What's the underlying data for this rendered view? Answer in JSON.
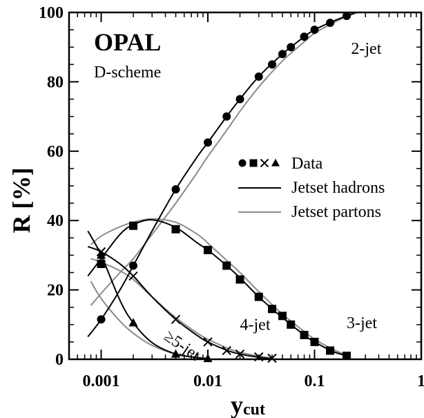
{
  "chart_data": {
    "type": "line",
    "title": "OPAL",
    "subtitle": "D-scheme",
    "xlabel": "y",
    "xlabel_sub": "cut",
    "ylabel": "R [%]",
    "x_scale": "log",
    "xlim": [
      0.0005,
      1
    ],
    "ylim": [
      0,
      100
    ],
    "x_ticks": [
      {
        "value": 0.001,
        "label": "0.001"
      },
      {
        "value": 0.01,
        "label": "0.01"
      },
      {
        "value": 0.1,
        "label": "0.1"
      },
      {
        "value": 1,
        "label": "1"
      }
    ],
    "y_ticks": [
      {
        "value": 0,
        "label": "0"
      },
      {
        "value": 20,
        "label": "20"
      },
      {
        "value": 40,
        "label": "40"
      },
      {
        "value": 60,
        "label": "60"
      },
      {
        "value": 80,
        "label": "80"
      },
      {
        "value": 100,
        "label": "100"
      }
    ],
    "grid": false,
    "legend_position": "right-middle",
    "legend": {
      "data_label": "Data",
      "hadrons_label": "Jetset hadrons",
      "partons_label": "Jetset partons"
    },
    "colors": {
      "data": "#000000",
      "hadrons": "#000000",
      "partons": "#8a8a8a"
    },
    "annotations": [
      {
        "text": "2-jet",
        "x": 0.22,
        "y": 88
      },
      {
        "text": "3-jet",
        "x": 0.2,
        "y": 9
      },
      {
        "text": "4-jet",
        "x": 0.02,
        "y": 8.5
      },
      {
        "text": "≥5-jet",
        "x": 0.0038,
        "y": 6,
        "rotate": 35
      }
    ],
    "series": [
      {
        "name": "2-jet",
        "marker": "circle",
        "x": [
          0.001,
          0.002,
          0.005,
          0.01,
          0.015,
          0.02,
          0.03,
          0.04,
          0.05,
          0.06,
          0.08,
          0.1,
          0.14,
          0.2
        ],
        "y": [
          11.5,
          27,
          49,
          62.5,
          70,
          75,
          81.5,
          85,
          88,
          90,
          93,
          95,
          97,
          99
        ]
      },
      {
        "name": "3-jet",
        "marker": "square",
        "x": [
          0.001,
          0.002,
          0.005,
          0.01,
          0.015,
          0.02,
          0.03,
          0.04,
          0.05,
          0.06,
          0.08,
          0.1,
          0.14,
          0.2
        ],
        "y": [
          27.5,
          38.5,
          37.5,
          31.5,
          27,
          23,
          18,
          14.5,
          12.5,
          10,
          7,
          5,
          2.5,
          1
        ]
      },
      {
        "name": "4-jet",
        "marker": "cross",
        "x": [
          0.001,
          0.002,
          0.005,
          0.01,
          0.015,
          0.02,
          0.03,
          0.04
        ],
        "y": [
          31,
          24,
          11.5,
          5,
          2.5,
          1.5,
          0.7,
          0.3
        ]
      },
      {
        "name": "≥5-jet",
        "marker": "triangle",
        "x": [
          0.001,
          0.002,
          0.005,
          0.01
        ],
        "y": [
          30,
          10.5,
          1.5,
          0.2
        ]
      }
    ],
    "curves": {
      "hadrons": [
        {
          "name": "2-jet",
          "x": [
            0.00075,
            0.001,
            0.0015,
            0.002,
            0.003,
            0.005,
            0.008,
            0.01,
            0.015,
            0.02,
            0.03,
            0.05,
            0.08,
            0.1,
            0.15,
            0.2,
            0.25
          ],
          "y": [
            6.5,
            11.5,
            20,
            27,
            37,
            49,
            58.5,
            62.5,
            70,
            75,
            81.5,
            88,
            93,
            95,
            97.5,
            99,
            100
          ]
        },
        {
          "name": "3-jet",
          "x": [
            0.00075,
            0.001,
            0.0015,
            0.002,
            0.003,
            0.005,
            0.008,
            0.01,
            0.015,
            0.02,
            0.03,
            0.05,
            0.08,
            0.1,
            0.15,
            0.2
          ],
          "y": [
            24,
            29,
            36,
            38.8,
            40.2,
            38,
            33.5,
            31.5,
            27,
            23.5,
            18,
            12,
            7,
            5,
            2.2,
            1
          ]
        },
        {
          "name": "4-jet",
          "x": [
            0.00075,
            0.001,
            0.0015,
            0.002,
            0.003,
            0.005,
            0.008,
            0.01,
            0.015,
            0.02,
            0.03,
            0.04
          ],
          "y": [
            32.5,
            31,
            27.5,
            24,
            18,
            11.5,
            6.8,
            5,
            2.6,
            1.5,
            0.6,
            0.2
          ]
        },
        {
          "name": "≥5-jet",
          "x": [
            0.00075,
            0.001,
            0.0015,
            0.002,
            0.003,
            0.005,
            0.008,
            0.01
          ],
          "y": [
            37,
            30,
            17,
            10.5,
            4.8,
            1.5,
            0.5,
            0.2
          ]
        }
      ],
      "partons": [
        {
          "name": "2-jet",
          "x": [
            0.0008,
            0.001,
            0.0015,
            0.002,
            0.003,
            0.005,
            0.008,
            0.01,
            0.015,
            0.02,
            0.03,
            0.05,
            0.08,
            0.1,
            0.15,
            0.2,
            0.25
          ],
          "y": [
            15.5,
            19,
            25,
            29,
            36,
            45,
            54,
            58.5,
            66,
            71.5,
            78.5,
            86,
            91.5,
            94,
            97,
            98.8,
            100
          ]
        },
        {
          "name": "3-jet",
          "x": [
            0.0008,
            0.001,
            0.0015,
            0.002,
            0.003,
            0.005,
            0.008,
            0.01,
            0.015,
            0.02,
            0.03,
            0.05,
            0.08,
            0.1,
            0.15,
            0.2
          ],
          "y": [
            33,
            35.5,
            38.2,
            39.5,
            40.5,
            39.5,
            36,
            33.5,
            28.5,
            25,
            19.5,
            13,
            8,
            5.8,
            2.8,
            1.2
          ]
        },
        {
          "name": "4-jet",
          "x": [
            0.0008,
            0.001,
            0.0015,
            0.002,
            0.003,
            0.005,
            0.008,
            0.01,
            0.015,
            0.02,
            0.03,
            0.04
          ],
          "y": [
            29,
            28,
            25.5,
            23,
            18,
            12,
            7.5,
            5.8,
            3.3,
            2,
            0.9,
            0.3
          ]
        },
        {
          "name": "≥5-jet",
          "x": [
            0.0008,
            0.001,
            0.0015,
            0.002,
            0.003,
            0.005,
            0.008,
            0.01
          ],
          "y": [
            22.5,
            17.5,
            11,
            7.5,
            4,
            1.5,
            0.5,
            0.2
          ]
        }
      ]
    }
  }
}
